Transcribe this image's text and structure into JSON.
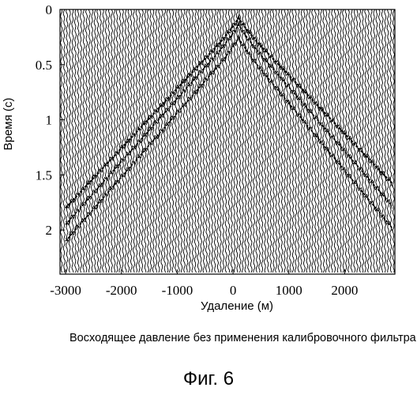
{
  "chart_data": {
    "type": "seismic_section",
    "xlabel": "Удаление (м)",
    "ylabel": "Время (с)",
    "xlim": [
      -3100,
      2900
    ],
    "ylim": [
      2.4,
      0
    ],
    "x_ticks": [
      -3000,
      -2000,
      -1000,
      0,
      1000,
      2000
    ],
    "x_tick_labels": [
      "-3000",
      "-2000",
      "-1000",
      "0",
      "1000",
      "2000"
    ],
    "y_ticks": [
      0,
      0.5,
      1,
      1.5,
      2
    ],
    "y_tick_labels": [
      "0",
      "0.5",
      "1",
      "1.5",
      "2"
    ],
    "trace_spacing": 50,
    "events": [
      {
        "apex_offset": 100,
        "apex_time": 0.12,
        "t_at_minus_3000": 1.8,
        "t_at_2800": 1.55
      },
      {
        "apex_offset": 100,
        "apex_time": 0.18,
        "t_at_minus_3000": 1.95,
        "t_at_2800": 1.75
      },
      {
        "apex_offset": 100,
        "apex_time": 0.3,
        "t_at_minus_3000": 2.1,
        "t_at_2800": 1.95
      }
    ]
  },
  "caption": "Восходящее давление без применения калибровочного фильтра",
  "figure_label": "Фиг. 6"
}
